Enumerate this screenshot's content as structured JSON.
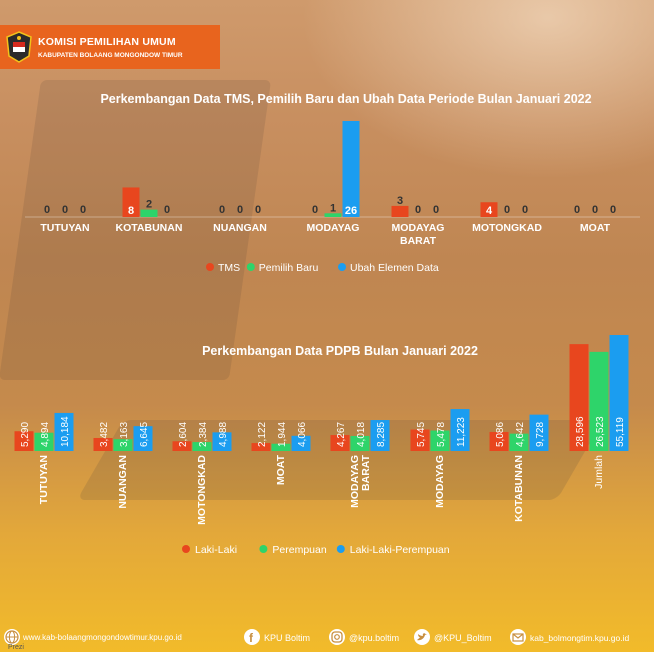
{
  "header": {
    "title": "KOMISI PEMILIHAN UMUM",
    "subtitle": "KABUPATEN BOLAANG MONGONDOW TIMUR"
  },
  "colors": {
    "red": "#e8461e",
    "green": "#2ed46a",
    "blue": "#1b9df0"
  },
  "chart_data": [
    {
      "type": "bar",
      "title": "Perkembangan Data TMS, Pemilih Baru dan Ubah Data Periode Bulan Januari 2022",
      "categories": [
        "TUTUYAN",
        "KOTABUNAN",
        "NUANGAN",
        "MODAYAG",
        "MODAYAG BARAT",
        "MOTONGKAD",
        "MOAT"
      ],
      "series": [
        {
          "name": "TMS",
          "color": "#e8461e",
          "values": [
            0,
            8,
            0,
            0,
            3,
            4,
            0
          ]
        },
        {
          "name": "Pemilih Baru",
          "color": "#2ed46a",
          "values": [
            0,
            2,
            0,
            1,
            0,
            0,
            0
          ]
        },
        {
          "name": "Ubah Elemen Data",
          "color": "#1b9df0",
          "values": [
            0,
            0,
            0,
            26,
            0,
            0,
            0
          ]
        }
      ],
      "legend": "bottom",
      "grid": false
    },
    {
      "type": "bar",
      "title": "Perkembangan Data PDPB Bulan Januari 2022",
      "categories": [
        "TUTUYAN",
        "NUANGAN",
        "MOTONGKAD",
        "MOAT",
        "MODAYAG BARAT",
        "MODAYAG",
        "KOTABUNAN",
        "Jumlah"
      ],
      "series": [
        {
          "name": "Laki-Laki",
          "color": "#e8461e",
          "values": [
            5290,
            3482,
            2604,
            2122,
            4267,
            5745,
            5086,
            28596
          ],
          "labels": [
            "5,290",
            "3,482",
            "2,604",
            "2,122",
            "4,267",
            "5,745",
            "5,086",
            "28,596"
          ]
        },
        {
          "name": "Perempuan",
          "color": "#2ed46a",
          "values": [
            4894,
            3163,
            2384,
            1944,
            4018,
            5478,
            4642,
            26523
          ],
          "labels": [
            "4,894",
            "3,163",
            "2,384",
            "1,944",
            "4,018",
            "5,478",
            "4,642",
            "26,523"
          ]
        },
        {
          "name": "Laki-Laki-Perempuan",
          "color": "#1b9df0",
          "values": [
            10184,
            6645,
            4988,
            4066,
            8285,
            11223,
            9728,
            55119
          ],
          "labels": [
            "10,184",
            "6,645",
            "4,988",
            "4,066",
            "8,285",
            "11,223",
            "9,728",
            "55,119"
          ]
        }
      ],
      "legend": "bottom",
      "grid": false
    }
  ],
  "footer": {
    "website": "www.kab-bolaangmongondowtimur.kpu.go.id",
    "facebook": "KPU Boltim",
    "instagram": "@kpu.boltim",
    "twitter": "@KPU_Boltim",
    "email": "kab_bolmongtim.kpu.go.id",
    "watermark": "Prezi"
  }
}
